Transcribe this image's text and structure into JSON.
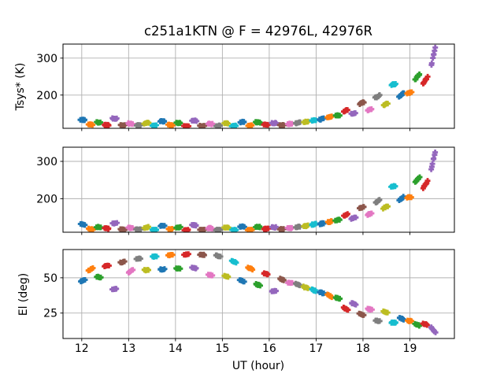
{
  "colors": {
    "background": "#ffffff",
    "grid": "#b0b0b0",
    "spine": "#000000",
    "text": "#000000"
  },
  "chart_data": {
    "type": "scatter",
    "title": "c251a1KTN @ F = 42976L, 42976R",
    "xlabel": "UT (hour)",
    "xlim": [
      11.6,
      19.95
    ],
    "xticks": [
      12,
      13,
      14,
      15,
      16,
      17,
      18,
      19
    ],
    "grid": true,
    "legend": "none",
    "marker": "thick-plus-cluster",
    "palette_cycle": [
      "#1f77b4",
      "#ff7f0e",
      "#2ca02c",
      "#d62728",
      "#9467bd",
      "#8c564b",
      "#e377c2",
      "#7f7f7f",
      "#bcbd22",
      "#17becf"
    ],
    "panels": [
      {
        "ylabel": "Tsys* (K)",
        "yticks": [
          200,
          300
        ],
        "ylim": [
          110,
          338
        ],
        "value_key": "tsys_L"
      },
      {
        "ylabel": "",
        "yticks": [
          200,
          300
        ],
        "ylim": [
          110,
          338
        ],
        "value_key": "tsys_R"
      },
      {
        "ylabel": "El (deg)",
        "yticks": [
          25,
          50
        ],
        "ylim": [
          7,
          70
        ],
        "value_key": "el"
      }
    ],
    "scans": [
      {
        "t": 12.02,
        "el": 48.0,
        "tsys_L": 133,
        "tsys_R": 131
      },
      {
        "t": 12.19,
        "el": 56.0,
        "tsys_L": 120,
        "tsys_R": 119
      },
      {
        "t": 12.36,
        "el": 50.5,
        "tsys_L": 126,
        "tsys_R": 124
      },
      {
        "t": 12.53,
        "el": 58.5,
        "tsys_L": 119,
        "tsys_R": 120
      },
      {
        "t": 12.7,
        "el": 42.0,
        "tsys_L": 136,
        "tsys_R": 134
      },
      {
        "t": 12.87,
        "el": 61.0,
        "tsys_L": 118,
        "tsys_R": 117
      },
      {
        "t": 13.04,
        "el": 54.5,
        "tsys_L": 122,
        "tsys_R": 121
      },
      {
        "t": 13.21,
        "el": 63.5,
        "tsys_L": 118,
        "tsys_R": 117
      },
      {
        "t": 13.38,
        "el": 55.5,
        "tsys_L": 124,
        "tsys_R": 123
      },
      {
        "t": 13.55,
        "el": 65.0,
        "tsys_L": 117,
        "tsys_R": 116
      },
      {
        "t": 13.72,
        "el": 56.0,
        "tsys_L": 129,
        "tsys_R": 127
      },
      {
        "t": 13.89,
        "el": 66.0,
        "tsys_L": 119,
        "tsys_R": 118
      },
      {
        "t": 14.06,
        "el": 56.5,
        "tsys_L": 125,
        "tsys_R": 123
      },
      {
        "t": 14.23,
        "el": 66.5,
        "tsys_L": 117,
        "tsys_R": 116
      },
      {
        "t": 14.4,
        "el": 57.0,
        "tsys_L": 131,
        "tsys_R": 129
      },
      {
        "t": 14.57,
        "el": 66.3,
        "tsys_L": 117,
        "tsys_R": 116
      },
      {
        "t": 14.74,
        "el": 52.0,
        "tsys_L": 122,
        "tsys_R": 121
      },
      {
        "t": 14.91,
        "el": 65.5,
        "tsys_L": 117,
        "tsys_R": 116
      },
      {
        "t": 15.08,
        "el": 51.0,
        "tsys_L": 123,
        "tsys_R": 122
      },
      {
        "t": 15.25,
        "el": 61.5,
        "tsys_L": 117,
        "tsys_R": 116
      },
      {
        "t": 15.42,
        "el": 47.8,
        "tsys_L": 127,
        "tsys_R": 125
      },
      {
        "t": 15.59,
        "el": 56.6,
        "tsys_L": 118,
        "tsys_R": 117
      },
      {
        "t": 15.76,
        "el": 45.0,
        "tsys_L": 126,
        "tsys_R": 124
      },
      {
        "t": 15.93,
        "el": 52.8,
        "tsys_L": 120,
        "tsys_R": 119
      },
      {
        "t": 16.1,
        "el": 40.6,
        "tsys_L": 124,
        "tsys_R": 123
      },
      {
        "t": 16.27,
        "el": 48.9,
        "tsys_L": 119,
        "tsys_R": 118
      },
      {
        "t": 16.44,
        "el": 46.5,
        "tsys_L": 122,
        "tsys_R": 121
      },
      {
        "t": 16.61,
        "el": 45.1,
        "tsys_L": 125,
        "tsys_R": 124
      },
      {
        "t": 16.78,
        "el": 43.0,
        "tsys_L": 128,
        "tsys_R": 127
      },
      {
        "t": 16.95,
        "el": 41.2,
        "tsys_L": 132,
        "tsys_R": 131
      },
      {
        "t": 17.12,
        "el": 39.3,
        "tsys_L": 135,
        "tsys_R": 133
      },
      {
        "t": 17.29,
        "el": 37.4,
        "tsys_L": 140,
        "tsys_R": 138
      },
      {
        "t": 17.46,
        "el": 35.5,
        "tsys_L": 145,
        "tsys_R": 143
      },
      {
        "t": 17.63,
        "el": 28.0,
        "tsys_L": 158,
        "tsys_R": 156
      },
      {
        "t": 17.8,
        "el": 31.6,
        "tsys_L": 150,
        "tsys_R": 148
      },
      {
        "t": 17.97,
        "el": 24.0,
        "tsys_L": 178,
        "tsys_R": 176
      },
      {
        "t": 18.14,
        "el": 27.7,
        "tsys_L": 161,
        "tsys_R": 159
      },
      {
        "t": 18.31,
        "el": 19.5,
        "tsys_L": 196,
        "tsys_R": 193
      },
      {
        "t": 18.48,
        "el": 25.5,
        "tsys_L": 175,
        "tsys_R": 177
      },
      {
        "t": 18.65,
        "el": 18.3,
        "tsys_L": 229,
        "tsys_R": 233
      },
      {
        "t": 18.82,
        "el": 21.1,
        "tsys_L": 201,
        "tsys_R": 200
      },
      {
        "t": 18.99,
        "el": 19.4,
        "tsys_L": 206,
        "tsys_R": 204
      },
      {
        "t": 19.16,
        "el": 16.7,
        "tsys_L": 249,
        "tsys_R": 251
      },
      {
        "t": 19.33,
        "el": 17.2,
        "tsys_L": 240,
        "tsys_R": 238
      },
      {
        "t": 19.5,
        "el": 13.0,
        "tsys_L": 305,
        "tsys_R": 303,
        "stretch": 3.5
      }
    ]
  }
}
